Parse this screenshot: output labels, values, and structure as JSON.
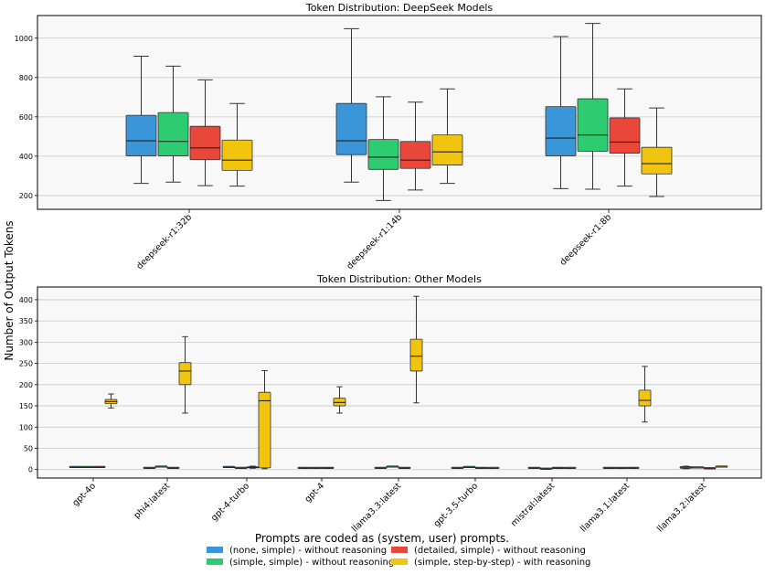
{
  "figure": {
    "shared_ylabel": "Number of Output Tokens"
  },
  "legend": {
    "title": "Prompts are coded as (system, user) prompts.",
    "items": [
      {
        "label": "(none, simple) - without reasoning",
        "color": "#3a95d9"
      },
      {
        "label": "(detailed, simple) - without reasoning",
        "color": "#e8473a"
      },
      {
        "label": "(simple, simple) - without reasoning",
        "color": "#2ecc71"
      },
      {
        "label": "(simple, step-by-step) - with reasoning",
        "color": "#f1c40f"
      }
    ]
  },
  "chart_data": [
    {
      "type": "box",
      "title": "Token Distribution: DeepSeek Models",
      "categories": [
        "deepseek-r1:32b",
        "deepseek-r1:14b",
        "deepseek-r1:8b"
      ],
      "ylim": [
        130,
        1115
      ],
      "yticks": [
        200,
        400,
        600,
        800,
        1000
      ],
      "grid": true,
      "series": [
        {
          "name": "(none, simple) - without reasoning",
          "color": "#3a95d9",
          "boxes": [
            {
              "min": 262,
              "q1": 402,
              "median": 478,
              "q3": 608,
              "max": 908
            },
            {
              "min": 268,
              "q1": 408,
              "median": 478,
              "q3": 668,
              "max": 1048
            },
            {
              "min": 235,
              "q1": 402,
              "median": 492,
              "q3": 652,
              "max": 1008
            }
          ]
        },
        {
          "name": "(simple, simple) - without reasoning",
          "color": "#2ecc71",
          "boxes": [
            {
              "min": 268,
              "q1": 402,
              "median": 475,
              "q3": 622,
              "max": 858
            },
            {
              "min": 175,
              "q1": 333,
              "median": 395,
              "q3": 485,
              "max": 702
            },
            {
              "min": 232,
              "q1": 425,
              "median": 508,
              "q3": 692,
              "max": 1075
            }
          ]
        },
        {
          "name": "(detailed, simple) - without reasoning",
          "color": "#e8473a",
          "boxes": [
            {
              "min": 250,
              "q1": 382,
              "median": 442,
              "q3": 552,
              "max": 788
            },
            {
              "min": 228,
              "q1": 338,
              "median": 380,
              "q3": 475,
              "max": 675
            },
            {
              "min": 248,
              "q1": 415,
              "median": 472,
              "q3": 595,
              "max": 742
            }
          ]
        },
        {
          "name": "(simple, step-by-step) - with reasoning",
          "color": "#f1c40f",
          "boxes": [
            {
              "min": 248,
              "q1": 328,
              "median": 380,
              "q3": 482,
              "max": 668
            },
            {
              "min": 262,
              "q1": 355,
              "median": 422,
              "q3": 508,
              "max": 742
            },
            {
              "min": 195,
              "q1": 310,
              "median": 362,
              "q3": 445,
              "max": 645
            }
          ]
        }
      ]
    },
    {
      "type": "box",
      "title": "Token Distribution: Other Models",
      "categories": [
        "gpt-4o",
        "phi4:latest",
        "gpt-4-turbo",
        "gpt-4",
        "llama3.3:latest",
        "gpt-3.5-turbo",
        "mistral:latest",
        "llama3.1:latest",
        "llama3.2:latest"
      ],
      "ylim": [
        -20,
        430
      ],
      "yticks": [
        0,
        50,
        100,
        150,
        200,
        250,
        300,
        350,
        400
      ],
      "grid": true,
      "series": [
        {
          "name": "(none, simple) - without reasoning",
          "color": "#3a95d9",
          "boxes": [
            {
              "min": 5,
              "q1": 5,
              "median": 5,
              "q3": 5,
              "max": 5
            },
            {
              "min": 3,
              "q1": 3,
              "median": 3,
              "q3": 3,
              "max": 3
            },
            {
              "min": 5,
              "q1": 5,
              "median": 5,
              "q3": 5,
              "max": 5
            },
            {
              "min": 3,
              "q1": 3,
              "median": 3,
              "q3": 3,
              "max": 3
            },
            {
              "min": 3,
              "q1": 3,
              "median": 3,
              "q3": 3,
              "max": 3
            },
            {
              "min": 3,
              "q1": 3,
              "median": 3,
              "q3": 3,
              "max": 3
            },
            {
              "min": 3,
              "q1": 3,
              "median": 3,
              "q3": 3,
              "max": 3
            },
            {
              "min": 3,
              "q1": 3,
              "median": 3,
              "q3": 3,
              "max": 3
            },
            {
              "min": 2,
              "q1": 3,
              "median": 4,
              "q3": 7,
              "max": 8
            }
          ]
        },
        {
          "name": "(simple, simple) - without reasoning",
          "color": "#2ecc71",
          "boxes": [
            {
              "min": 5,
              "q1": 5,
              "median": 5,
              "q3": 5,
              "max": 5
            },
            {
              "min": 6,
              "q1": 6,
              "median": 6,
              "q3": 6,
              "max": 6
            },
            {
              "min": 3,
              "q1": 3,
              "median": 3,
              "q3": 3,
              "max": 3
            },
            {
              "min": 3,
              "q1": 3,
              "median": 3,
              "q3": 3,
              "max": 3
            },
            {
              "min": 6,
              "q1": 6,
              "median": 6,
              "q3": 6,
              "max": 6
            },
            {
              "min": 5,
              "q1": 5,
              "median": 5,
              "q3": 5,
              "max": 5
            },
            {
              "min": 1,
              "q1": 1,
              "median": 1,
              "q3": 1,
              "max": 1
            },
            {
              "min": 3,
              "q1": 3,
              "median": 3,
              "q3": 3,
              "max": 3
            },
            {
              "min": 4,
              "q1": 4,
              "median": 4,
              "q3": 4,
              "max": 4
            }
          ]
        },
        {
          "name": "(detailed, simple) - without reasoning",
          "color": "#e8473a",
          "boxes": [
            {
              "min": 5,
              "q1": 5,
              "median": 5,
              "q3": 5,
              "max": 5
            },
            {
              "min": 3,
              "q1": 3,
              "median": 3,
              "q3": 3,
              "max": 3
            },
            {
              "min": 3,
              "q1": 4,
              "median": 5,
              "q3": 6,
              "max": 8
            },
            {
              "min": 3,
              "q1": 3,
              "median": 3,
              "q3": 3,
              "max": 3
            },
            {
              "min": 3,
              "q1": 3,
              "median": 3,
              "q3": 3,
              "max": 3
            },
            {
              "min": 3,
              "q1": 3,
              "median": 3,
              "q3": 3,
              "max": 3
            },
            {
              "min": 3,
              "q1": 3,
              "median": 3,
              "q3": 3,
              "max": 3
            },
            {
              "min": 3,
              "q1": 3,
              "median": 3,
              "q3": 3,
              "max": 3
            },
            {
              "min": 2,
              "q1": 2,
              "median": 2,
              "q3": 2,
              "max": 2
            }
          ]
        },
        {
          "name": "(simple, step-by-step) - with reasoning",
          "color": "#f1c40f",
          "boxes": [
            {
              "min": 145,
              "q1": 155,
              "median": 160,
              "q3": 165,
              "max": 178
            },
            {
              "min": 133,
              "q1": 200,
              "median": 232,
              "q3": 252,
              "max": 313
            },
            {
              "min": 2,
              "q1": 4,
              "median": 162,
              "q3": 182,
              "max": 233
            },
            {
              "min": 133,
              "q1": 150,
              "median": 158,
              "q3": 168,
              "max": 195
            },
            {
              "min": 157,
              "q1": 232,
              "median": 267,
              "q3": 307,
              "max": 408
            },
            {
              "min": 3,
              "q1": 3,
              "median": 3,
              "q3": 3,
              "max": 3
            },
            {
              "min": 3,
              "q1": 3,
              "median": 3,
              "q3": 3,
              "max": 3
            },
            {
              "min": 112,
              "q1": 150,
              "median": 163,
              "q3": 187,
              "max": 243
            },
            {
              "min": 6,
              "q1": 6,
              "median": 6,
              "q3": 6,
              "max": 6
            }
          ]
        }
      ]
    }
  ]
}
